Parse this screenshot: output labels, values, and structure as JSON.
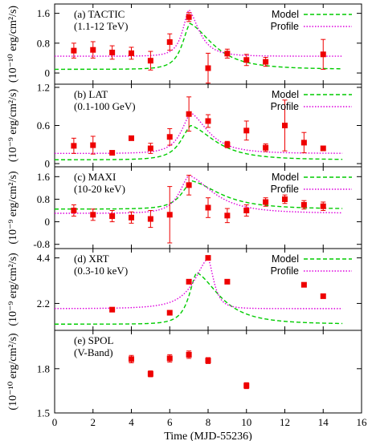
{
  "chart_data": {
    "type": "scatter",
    "xlabel": "Time (MJD-55236)",
    "xlim": [
      0,
      16
    ],
    "xticks": [
      0,
      2,
      4,
      6,
      8,
      10,
      12,
      14,
      16
    ],
    "colors": {
      "data": "#ee0000",
      "model": "#00cc00",
      "profile": "#dd00dd",
      "axis": "#000000"
    },
    "legend": {
      "placement": "top-right",
      "model_label": "Model",
      "profile_label": "Profile"
    },
    "panels": [
      {
        "id": "tactic",
        "label": "(a) TACTIC",
        "sublabel": "(1.1-12 TeV)",
        "ylabel": "(10⁻¹⁰ erg/cm²/s)",
        "ylim": [
          -0.3,
          1.85
        ],
        "yticks": [
          0,
          0.8,
          1.6
        ],
        "ytick_labels": [
          "0",
          "0.8",
          "1.6"
        ],
        "has_legend": true,
        "points": [
          {
            "x": 1,
            "y": 0.6,
            "err": 0.2
          },
          {
            "x": 2,
            "y": 0.62,
            "err": 0.22
          },
          {
            "x": 3,
            "y": 0.55,
            "err": 0.18
          },
          {
            "x": 4,
            "y": 0.53,
            "err": 0.16
          },
          {
            "x": 5,
            "y": 0.33,
            "err": 0.25
          },
          {
            "x": 6,
            "y": 0.83,
            "err": 0.22
          },
          {
            "x": 7,
            "y": 1.5,
            "err": 0.12
          },
          {
            "x": 8,
            "y": 0.13,
            "err": 0.4
          },
          {
            "x": 9,
            "y": 0.52,
            "err": 0.12
          },
          {
            "x": 10,
            "y": 0.35,
            "err": 0.15
          },
          {
            "x": 11,
            "y": 0.3,
            "err": 0.12
          },
          {
            "x": 14,
            "y": 0.5,
            "err": 0.4
          }
        ],
        "model": {
          "base": 0.1,
          "peak_x": 7.05,
          "peak_y": 1.33,
          "tau_rise": 0.6,
          "tau_fall": 1.8
        },
        "profile": {
          "base": 0.45,
          "peak_x": 7.0,
          "peak_y": 1.7,
          "tau_rise": 0.5,
          "tau_fall": 0.8
        }
      },
      {
        "id": "lat",
        "label": "(b) LAT",
        "sublabel": "(0.1-100 GeV)",
        "ylabel": "(10⁻⁹ erg/cm²/s)",
        "ylim": [
          -0.05,
          1.25
        ],
        "yticks": [
          0,
          0.6,
          1.2
        ],
        "ytick_labels": [
          "0",
          "0.6",
          "1.2"
        ],
        "has_legend": true,
        "points": [
          {
            "x": 1,
            "y": 0.28,
            "err": 0.12
          },
          {
            "x": 2,
            "y": 0.29,
            "err": 0.14
          },
          {
            "x": 3,
            "y": 0.17,
            "err": 0.03
          },
          {
            "x": 4,
            "y": 0.4,
            "err": 0.03
          },
          {
            "x": 5,
            "y": 0.24,
            "err": 0.08
          },
          {
            "x": 6,
            "y": 0.42,
            "err": 0.13
          },
          {
            "x": 7,
            "y": 0.78,
            "err": 0.27
          },
          {
            "x": 8,
            "y": 0.67,
            "err": 0.1
          },
          {
            "x": 9,
            "y": 0.3,
            "err": 0.05
          },
          {
            "x": 10,
            "y": 0.52,
            "err": 0.15
          },
          {
            "x": 11,
            "y": 0.25,
            "err": 0.06
          },
          {
            "x": 12,
            "y": 0.6,
            "err": 0.4
          },
          {
            "x": 13,
            "y": 0.33,
            "err": 0.16
          },
          {
            "x": 14,
            "y": 0.24,
            "err": 0.03
          }
        ],
        "model": {
          "base": 0.06,
          "peak_x": 7.1,
          "peak_y": 0.6,
          "tau_rise": 0.8,
          "tau_fall": 1.9
        },
        "profile": {
          "base": 0.16,
          "peak_x": 7.1,
          "peak_y": 0.8,
          "tau_rise": 0.75,
          "tau_fall": 1.35
        }
      },
      {
        "id": "maxi",
        "label": "(c) MAXI",
        "sublabel": "(10-20 keV)",
        "ylabel": "(10⁻⁹ erg/cm²/s)",
        "ylim": [
          -0.95,
          1.95
        ],
        "yticks": [
          -0.8,
          0,
          0.8,
          1.6
        ],
        "ytick_labels": [
          "-0.8",
          "0",
          "0.8",
          "1.6"
        ],
        "has_legend": true,
        "points": [
          {
            "x": 1,
            "y": 0.4,
            "err": 0.2
          },
          {
            "x": 2,
            "y": 0.25,
            "err": 0.2
          },
          {
            "x": 3,
            "y": 0.2,
            "err": 0.2
          },
          {
            "x": 4,
            "y": 0.15,
            "err": 0.2
          },
          {
            "x": 5,
            "y": 0.1,
            "err": 0.3
          },
          {
            "x": 6,
            "y": 0.25,
            "err": 1.0
          },
          {
            "x": 7,
            "y": 1.3,
            "err": 0.35
          },
          {
            "x": 8,
            "y": 0.5,
            "err": 0.35
          },
          {
            "x": 9,
            "y": 0.22,
            "err": 0.25
          },
          {
            "x": 10,
            "y": 0.4,
            "err": 0.2
          },
          {
            "x": 11,
            "y": 0.7,
            "err": 0.15
          },
          {
            "x": 12,
            "y": 0.8,
            "err": 0.15
          },
          {
            "x": 13,
            "y": 0.6,
            "err": 0.15
          },
          {
            "x": 14,
            "y": 0.55,
            "err": 0.15
          }
        ],
        "model": {
          "base": 0.45,
          "peak_x": 7.15,
          "peak_y": 1.45,
          "tau_rise": 0.8,
          "tau_fall": 2.2
        },
        "profile": {
          "base": 0.3,
          "peak_x": 7.0,
          "peak_y": 1.65,
          "tau_rise": 0.75,
          "tau_fall": 1.9
        }
      },
      {
        "id": "xrt",
        "label": "(d) XRT",
        "sublabel": "(0.3-10 keV)",
        "ylabel": "(10⁻⁹ erg/cm²/s)",
        "ylim": [
          0.9,
          4.85
        ],
        "yticks": [
          2.2,
          4.4
        ],
        "ytick_labels": [
          "2.2",
          "4.4"
        ],
        "has_legend": true,
        "points": [
          {
            "x": 3,
            "y": 1.9,
            "err": 0.05
          },
          {
            "x": 6,
            "y": 1.75,
            "err": 0.05
          },
          {
            "x": 7,
            "y": 3.25,
            "err": 0.05
          },
          {
            "x": 8,
            "y": 4.4,
            "err": 0.05
          },
          {
            "x": 9,
            "y": 3.25,
            "err": 0.05
          },
          {
            "x": 13,
            "y": 3.1,
            "err": 0.05
          },
          {
            "x": 14,
            "y": 2.55,
            "err": 0.05
          }
        ],
        "model": {
          "base": 1.2,
          "peak_x": 7.4,
          "peak_y": 3.7,
          "tau_rise": 0.6,
          "tau_fall": 1.8
        },
        "profile": {
          "base": 1.95,
          "peak_x": 8.0,
          "peak_y": 4.4,
          "tau_rise": 1.1,
          "tau_fall": 0.45
        }
      },
      {
        "id": "spol",
        "label": "(e) SPOL",
        "sublabel": "(V-Band)",
        "ylabel": "(10⁻¹⁰ erg/cm²/s)",
        "ylim": [
          1.5,
          2.06
        ],
        "yticks": [
          1.5,
          1.8
        ],
        "ytick_labels": [
          "1.5",
          "1.8"
        ],
        "has_legend": false,
        "points": [
          {
            "x": 4,
            "y": 1.865,
            "err": 0.025
          },
          {
            "x": 5,
            "y": 1.765,
            "err": 0.02
          },
          {
            "x": 6,
            "y": 1.87,
            "err": 0.025
          },
          {
            "x": 7,
            "y": 1.895,
            "err": 0.025
          },
          {
            "x": 8,
            "y": 1.855,
            "err": 0.02
          },
          {
            "x": 10,
            "y": 1.685,
            "err": 0.02
          }
        ]
      }
    ]
  }
}
